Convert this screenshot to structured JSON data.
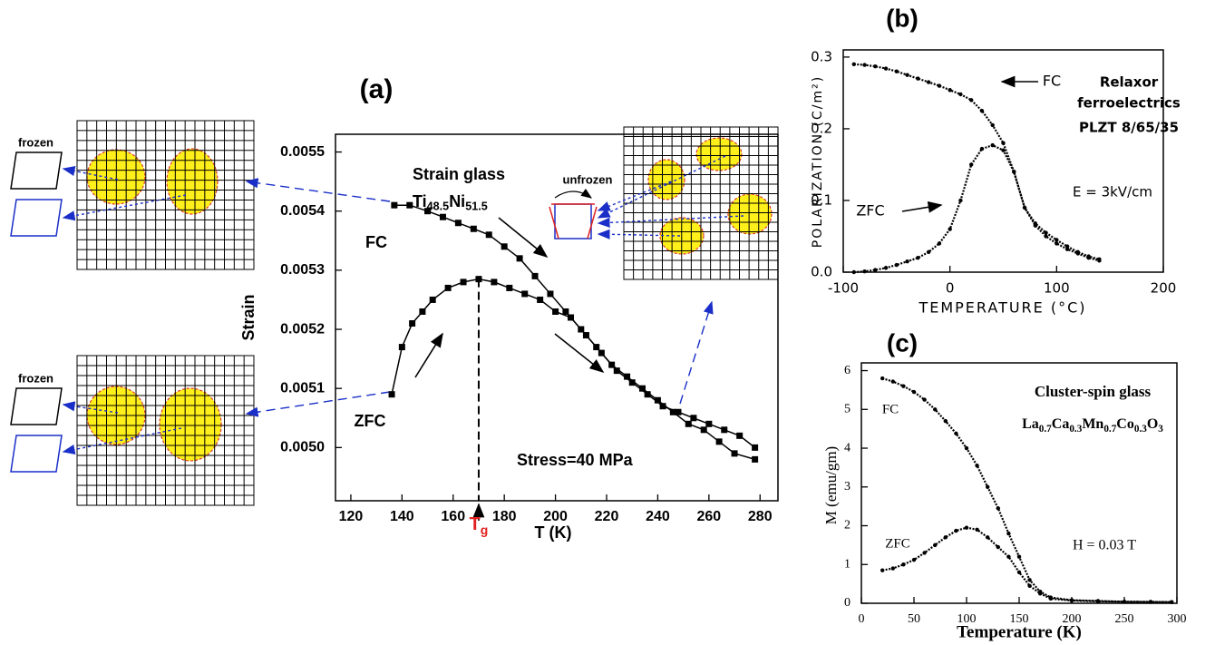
{
  "chart_data": [
    {
      "type": "line",
      "title": "(a)",
      "xlabel": "T (K)",
      "ylabel": "Strain",
      "xlim": [
        114,
        287
      ],
      "ylim": [
        0.00491,
        0.00553
      ],
      "xticks": [
        120,
        140,
        160,
        180,
        200,
        220,
        240,
        260,
        280
      ],
      "yticks": [
        {
          "value": 0.005,
          "label": "0.0050"
        },
        0.0051,
        0.0052,
        0.0053,
        0.0054,
        0.0055
      ],
      "marker": "square",
      "series": [
        {
          "name": "FC",
          "color": "#000000",
          "x": [
            137,
            143,
            150,
            156,
            162,
            168,
            174,
            180,
            186,
            192,
            198,
            204,
            210,
            216,
            222,
            228,
            234,
            240,
            246,
            252,
            258,
            264,
            270,
            278
          ],
          "values": [
            0.00541,
            0.00541,
            0.0054,
            0.00539,
            0.00538,
            0.00537,
            0.00536,
            0.00534,
            0.00532,
            0.00529,
            0.00526,
            0.00523,
            0.0052,
            0.00517,
            0.00514,
            0.00512,
            0.0051,
            0.00508,
            0.00506,
            0.00504,
            0.00503,
            0.00501,
            0.00499,
            0.00498
          ]
        },
        {
          "name": "ZFC",
          "color": "#000000",
          "x": [
            136,
            140,
            144,
            148,
            152,
            158,
            164,
            170,
            176,
            182,
            188,
            194,
            200,
            206,
            212,
            218,
            224,
            230,
            236,
            242,
            248,
            254,
            260,
            266,
            272,
            278
          ],
          "values": [
            0.00509,
            0.00517,
            0.00521,
            0.00523,
            0.00525,
            0.00527,
            0.00528,
            0.005285,
            0.00528,
            0.00527,
            0.00526,
            0.00525,
            0.00523,
            0.00522,
            0.00519,
            0.00516,
            0.00513,
            0.00511,
            0.00509,
            0.00507,
            0.00506,
            0.00505,
            0.00504,
            0.00503,
            0.00502,
            0.005
          ]
        }
      ],
      "annotations": [
        "Strain glass",
        "Stress=40 MPa",
        "unfrozen",
        "frozen",
        "frozen"
      ],
      "formula": [
        "Ti",
        "48.5",
        "Ni",
        "51.5"
      ],
      "tg_label": [
        "T",
        "g"
      ]
    },
    {
      "type": "line",
      "title": "(b)",
      "xlabel": "TEMPERATURE (°C)",
      "ylabel": "POLARIZATION (C/m²)",
      "xlim": [
        -100,
        200
      ],
      "ylim": [
        0,
        0.31
      ],
      "xticks": [
        -100,
        0,
        100,
        200
      ],
      "yticks": [
        {
          "value": 0,
          "label": "0.0"
        },
        0.1,
        0.2,
        0.3
      ],
      "marker": "dot",
      "series": [
        {
          "name": "FC",
          "color": "#000000",
          "x": [
            -90,
            -80,
            -70,
            -60,
            -50,
            -40,
            -30,
            -20,
            -10,
            0,
            10,
            20,
            30,
            40,
            50,
            60,
            70,
            80,
            90,
            100,
            110,
            120,
            130,
            140
          ],
          "values": [
            0.29,
            0.289,
            0.287,
            0.284,
            0.28,
            0.275,
            0.27,
            0.265,
            0.26,
            0.254,
            0.248,
            0.24,
            0.225,
            0.205,
            0.18,
            0.14,
            0.09,
            0.065,
            0.05,
            0.04,
            0.032,
            0.026,
            0.02,
            0.016
          ]
        },
        {
          "name": "ZFC",
          "color": "#000000",
          "x": [
            -90,
            -80,
            -70,
            -60,
            -50,
            -40,
            -30,
            -20,
            -10,
            0,
            10,
            20,
            30,
            40,
            50,
            60,
            70,
            80,
            90,
            100,
            110,
            120,
            130,
            140
          ],
          "values": [
            0.0,
            0.001,
            0.003,
            0.006,
            0.01,
            0.015,
            0.02,
            0.028,
            0.04,
            0.06,
            0.1,
            0.15,
            0.172,
            0.177,
            0.17,
            0.14,
            0.09,
            0.068,
            0.055,
            0.045,
            0.036,
            0.028,
            0.022,
            0.018
          ]
        }
      ],
      "annotations": [
        "Relaxor",
        "ferroelectrics",
        "PLZT 8/65/35",
        "E = 3kV/cm"
      ]
    },
    {
      "type": "line",
      "title": "(c)",
      "xlabel": "Temperature (K)",
      "ylabel": "M (emu/gm)",
      "xlim": [
        0,
        300
      ],
      "ylim": [
        0,
        6.2
      ],
      "xticks": [
        0,
        50,
        100,
        150,
        200,
        250,
        300
      ],
      "yticks": [
        0,
        1,
        2,
        3,
        4,
        5,
        6
      ],
      "marker": "dot",
      "series": [
        {
          "name": "FC",
          "color": "#000000",
          "x": [
            20,
            30,
            40,
            50,
            60,
            70,
            80,
            90,
            100,
            110,
            120,
            130,
            140,
            150,
            160,
            170,
            180,
            200,
            225,
            250,
            275,
            295
          ],
          "values": [
            5.8,
            5.72,
            5.6,
            5.45,
            5.25,
            5.0,
            4.7,
            4.38,
            4.0,
            3.55,
            3.0,
            2.45,
            1.8,
            1.2,
            0.6,
            0.3,
            0.15,
            0.08,
            0.06,
            0.04,
            0.035,
            0.03
          ]
        },
        {
          "name": "ZFC",
          "color": "#000000",
          "x": [
            20,
            30,
            40,
            50,
            60,
            70,
            80,
            90,
            100,
            110,
            120,
            130,
            140,
            150,
            160,
            170,
            180,
            200,
            225,
            250,
            275,
            295
          ],
          "values": [
            0.85,
            0.9,
            1.0,
            1.12,
            1.3,
            1.5,
            1.7,
            1.87,
            1.95,
            1.9,
            1.7,
            1.45,
            1.2,
            0.8,
            0.45,
            0.25,
            0.12,
            0.07,
            0.05,
            0.04,
            0.035,
            0.03
          ]
        }
      ],
      "annotations": [
        "Cluster-spin glass",
        "H = 0.03 T"
      ],
      "formula": [
        "La",
        "0.7",
        "Ca",
        "0.3",
        "Mn",
        "0.7",
        "Co",
        "0.3",
        "O",
        "3"
      ]
    }
  ]
}
